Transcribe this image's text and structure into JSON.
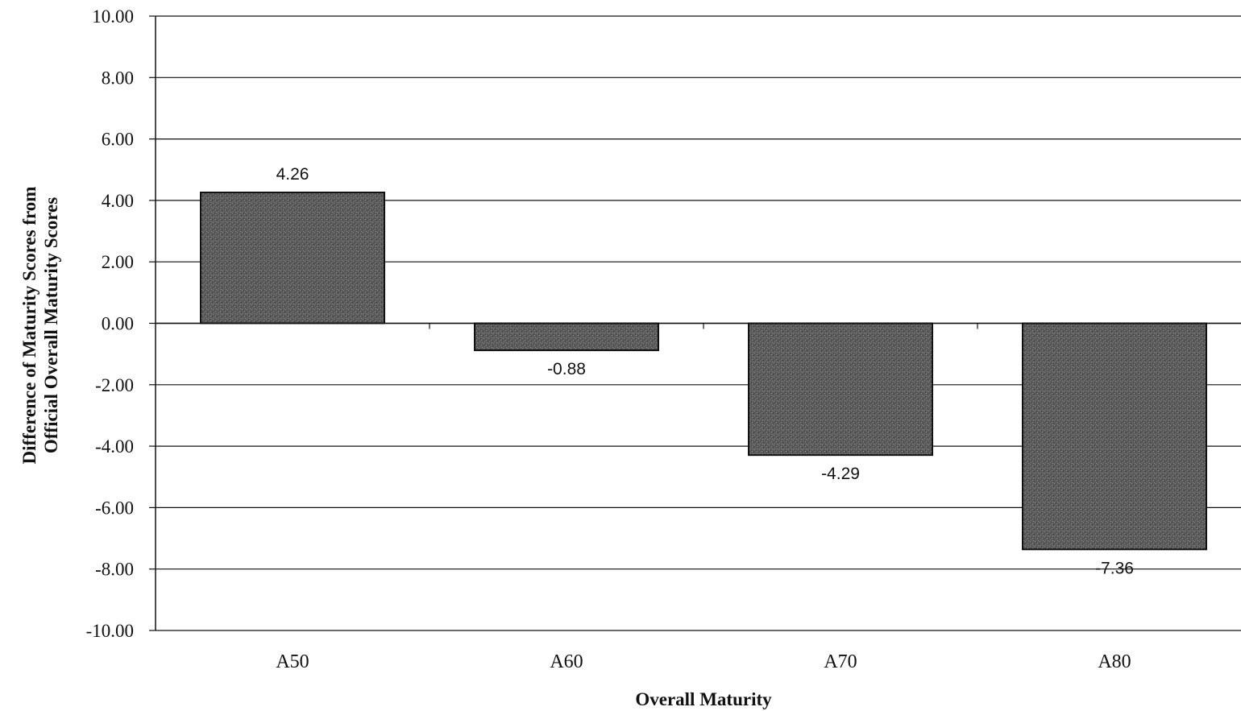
{
  "chart_data": {
    "type": "bar",
    "title": "",
    "xlabel": "Overall Maturity",
    "ylabel_lines": [
      "Difference of Maturity Scores from",
      "Official Overall Maturity Scores"
    ],
    "categories": [
      "A50",
      "A60",
      "A70",
      "A80"
    ],
    "values": [
      4.26,
      -0.88,
      -4.29,
      -7.36
    ],
    "data_labels": [
      "4.26",
      "-0.88",
      "-4.29",
      "-7.36"
    ],
    "ylim": [
      -10,
      10
    ],
    "y_ticks": [
      10,
      8,
      6,
      4,
      2,
      0,
      -2,
      -4,
      -6,
      -8,
      -10
    ],
    "y_tick_labels": [
      "10.00",
      "8.00",
      "6.00",
      "4.00",
      "2.00",
      "0.00",
      "-2.00",
      "-4.00",
      "-6.00",
      "-8.00",
      "-10.00"
    ],
    "grid": true,
    "legend": "none",
    "bar_color": "#555555",
    "grid_color": "#111111"
  }
}
